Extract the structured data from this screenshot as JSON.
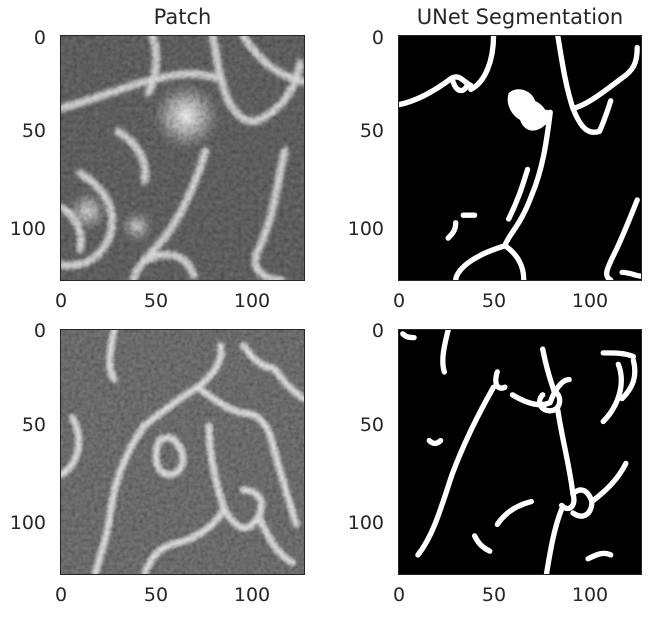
{
  "figure": {
    "titles": [
      "Patch",
      "UNet Segmentation"
    ],
    "x_ticks": [
      "0",
      "50",
      "100"
    ],
    "y_ticks": [
      "0",
      "50",
      "100"
    ]
  },
  "panels": [
    {
      "name": "patch-top",
      "kind": "grayscale",
      "title": "Patch"
    },
    {
      "name": "segmentation-top",
      "kind": "binary",
      "title": "UNet Segmentation"
    },
    {
      "name": "patch-bottom",
      "kind": "grayscale",
      "title": ""
    },
    {
      "name": "segmentation-bottom",
      "kind": "binary",
      "title": ""
    }
  ]
}
